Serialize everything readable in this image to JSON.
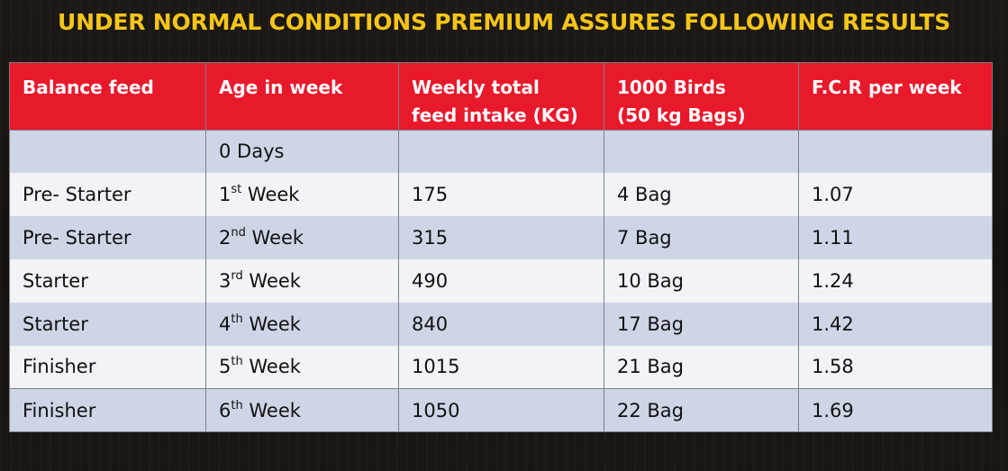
{
  "title": "UNDER NORMAL CONDITIONS PREMIUM ASSURES FOLLOWING RESULTS",
  "colors": {
    "title": "#f5c518",
    "header_bg": "#e8192b",
    "row_dark": "#ced6e6",
    "row_light": "#f2f3f6"
  },
  "table": {
    "headers": [
      [
        "Balance feed",
        ""
      ],
      [
        "Age in week",
        ""
      ],
      [
        "Weekly total",
        "feed intake (KG)"
      ],
      [
        "1000 Birds",
        "(50 kg Bags)"
      ],
      [
        "F.C.R per week",
        ""
      ]
    ],
    "rows": [
      {
        "feed": "",
        "age_num": "0 Days",
        "age_sup": "",
        "age_rest": "",
        "intake": "",
        "bags": "",
        "fcr": ""
      },
      {
        "feed": "Pre- Starter",
        "age_num": "1",
        "age_sup": "st",
        "age_rest": " Week",
        "intake": "175",
        "bags": "4 Bag",
        "fcr": "1.07"
      },
      {
        "feed": "Pre- Starter",
        "age_num": "2",
        "age_sup": "nd",
        "age_rest": " Week",
        "intake": "315",
        "bags": "7 Bag",
        "fcr": "1.11"
      },
      {
        "feed": "Starter",
        "age_num": "3",
        "age_sup": "rd",
        "age_rest": " Week",
        "intake": "490",
        "bags": "10 Bag",
        "fcr": "1.24"
      },
      {
        "feed": "Starter",
        "age_num": "4",
        "age_sup": "th",
        "age_rest": " Week",
        "intake": "840",
        "bags": "17 Bag",
        "fcr": "1.42"
      },
      {
        "feed": "Finisher",
        "age_num": "5",
        "age_sup": "th",
        "age_rest": " Week",
        "intake": "1015",
        "bags": "21 Bag",
        "fcr": "1.58"
      },
      {
        "feed": "Finisher",
        "age_num": "6",
        "age_sup": "th",
        "age_rest": " Week",
        "intake": "1050",
        "bags": "22 Bag",
        "fcr": "1.69"
      }
    ]
  }
}
